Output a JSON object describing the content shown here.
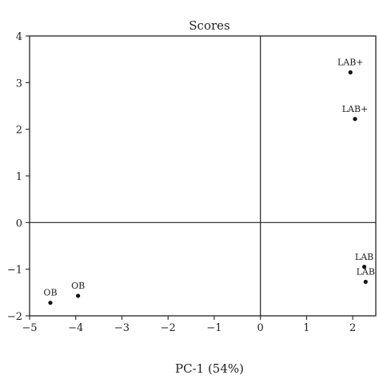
{
  "chart_data": {
    "type": "scatter",
    "title": "Scores",
    "xlabel": "PC-1 (54%)",
    "ylabel": "",
    "xlim": [
      -5,
      2.5
    ],
    "ylim": [
      -2,
      4
    ],
    "x_ticks": [
      -5,
      -4,
      -3,
      -2,
      -1,
      0,
      1,
      2
    ],
    "x_tick_labels": [
      "−5",
      "−4",
      "−3",
      "−2",
      "−1",
      "0",
      "1",
      "2"
    ],
    "y_ticks": [
      -2,
      -1,
      0,
      1,
      2,
      3,
      4
    ],
    "y_tick_labels": [
      "−2",
      "−1",
      "0",
      "1",
      "2",
      "3",
      "4"
    ],
    "grid": false,
    "zero_lines": true,
    "point_color": "#111111",
    "points": [
      {
        "label": "LAB+",
        "x": 1.95,
        "y": 3.22
      },
      {
        "label": "LAB+",
        "x": 2.05,
        "y": 2.22
      },
      {
        "label": "LAB",
        "x": 2.25,
        "y": -0.95
      },
      {
        "label": "LAB",
        "x": 2.28,
        "y": -1.27
      },
      {
        "label": "OB",
        "x": -4.55,
        "y": -1.72
      },
      {
        "label": "OB",
        "x": -3.95,
        "y": -1.57
      }
    ]
  }
}
